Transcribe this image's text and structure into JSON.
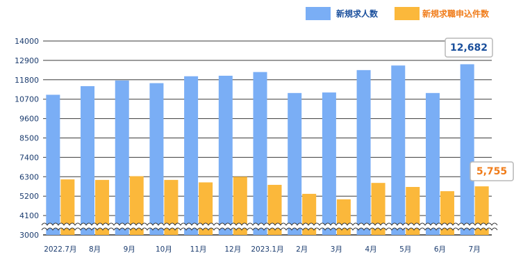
{
  "chart_data": {
    "type": "bar",
    "categories": [
      "2022.7月",
      "8月",
      "9月",
      "10月",
      "11月",
      "12月",
      "2023.1月",
      "2月",
      "3月",
      "4月",
      "5月",
      "6月",
      "7月"
    ],
    "series": [
      {
        "name": "新規求人数",
        "color": "#7aaef5",
        "values": [
          10950,
          11440,
          11760,
          11610,
          12000,
          12030,
          12240,
          11050,
          11080,
          12350,
          12610,
          11050,
          12682
        ]
      },
      {
        "name": "新規求職申込件数",
        "color": "#fbb83b",
        "values": [
          6150,
          6120,
          6330,
          6120,
          5980,
          6300,
          5840,
          5330,
          5020,
          5950,
          5720,
          5480,
          5755
        ]
      }
    ],
    "yticks": [
      3000,
      4100,
      5200,
      6300,
      7400,
      8500,
      9600,
      10700,
      11800,
      12900,
      14000
    ],
    "ylim": [
      3000,
      14000
    ],
    "axis_break": true,
    "grid": true,
    "legend": "top-right",
    "callouts": [
      {
        "label": "12,682",
        "color": "#1a4f9c"
      },
      {
        "label": "5,755",
        "color": "#f07c1a"
      }
    ]
  }
}
